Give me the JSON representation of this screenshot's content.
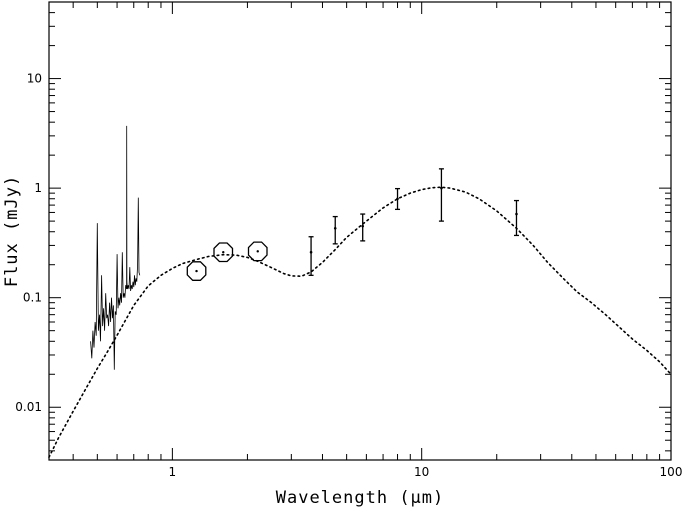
{
  "chart_data": {
    "type": "scatter",
    "title": "",
    "xlabel": "Wavelength (μm)",
    "ylabel": "Flux (mJy)",
    "xscale": "log",
    "yscale": "log",
    "xlim": [
      0.32,
      100
    ],
    "ylim": [
      0.0033,
      50
    ],
    "grid": false,
    "x_ticks": [
      {
        "value": 1,
        "label": "1"
      },
      {
        "value": 10,
        "label": "10"
      },
      {
        "value": 100,
        "label": "100"
      }
    ],
    "y_ticks": [
      {
        "value": 0.01,
        "label": "0.01"
      },
      {
        "value": 0.1,
        "label": "0.1"
      },
      {
        "value": 1,
        "label": "1"
      },
      {
        "value": 10,
        "label": "10"
      }
    ],
    "series": [
      {
        "style": "dotted-line",
        "x": [
          0.32,
          0.35,
          0.4,
          0.45,
          0.5,
          0.55,
          0.6,
          0.7,
          0.8,
          0.9,
          1.0,
          1.1,
          1.25,
          1.4,
          1.6,
          1.8,
          2.0,
          2.2,
          2.5,
          2.8,
          3.0,
          3.3,
          3.6,
          4.0,
          4.5,
          5.0,
          5.8,
          7.0,
          8.0,
          9.0,
          10,
          11,
          12,
          13,
          15,
          17,
          20,
          24,
          28,
          32,
          37,
          42,
          48,
          55,
          62,
          70,
          80,
          90,
          100
        ],
        "y": [
          0.0035,
          0.0053,
          0.0092,
          0.0148,
          0.0226,
          0.0323,
          0.0455,
          0.085,
          0.128,
          0.16,
          0.185,
          0.205,
          0.223,
          0.238,
          0.247,
          0.245,
          0.233,
          0.215,
          0.188,
          0.166,
          0.158,
          0.157,
          0.172,
          0.21,
          0.275,
          0.355,
          0.47,
          0.66,
          0.8,
          0.9,
          0.97,
          1.01,
          1.02,
          1.0,
          0.92,
          0.8,
          0.62,
          0.43,
          0.3,
          0.21,
          0.15,
          0.113,
          0.09,
          0.069,
          0.054,
          0.042,
          0.033,
          0.026,
          0.02
        ]
      },
      {
        "style": "spectrum",
        "x": [
          0.47,
          0.475,
          0.48,
          0.485,
          0.49,
          0.495,
          0.5,
          0.505,
          0.51,
          0.515,
          0.52,
          0.525,
          0.53,
          0.535,
          0.54,
          0.545,
          0.55,
          0.555,
          0.56,
          0.565,
          0.57,
          0.575,
          0.58,
          0.585,
          0.59,
          0.595,
          0.6,
          0.605,
          0.61,
          0.615,
          0.62,
          0.625,
          0.63,
          0.635,
          0.64,
          0.645,
          0.65,
          0.655,
          0.656,
          0.657,
          0.66,
          0.665,
          0.67,
          0.675,
          0.68,
          0.685,
          0.69,
          0.695,
          0.7,
          0.705,
          0.71,
          0.715,
          0.72,
          0.725,
          0.73,
          0.735,
          0.74
        ],
        "y": [
          0.04,
          0.028,
          0.05,
          0.035,
          0.06,
          0.045,
          0.48,
          0.05,
          0.07,
          0.04,
          0.16,
          0.055,
          0.08,
          0.05,
          0.11,
          0.065,
          0.07,
          0.055,
          0.09,
          0.06,
          0.1,
          0.065,
          0.085,
          0.022,
          0.075,
          0.07,
          0.25,
          0.08,
          0.1,
          0.085,
          0.11,
          0.09,
          0.26,
          0.1,
          0.11,
          0.1,
          0.13,
          0.12,
          3.7,
          0.14,
          0.12,
          0.13,
          0.12,
          0.19,
          0.115,
          0.13,
          0.12,
          0.14,
          0.125,
          0.16,
          0.13,
          0.15,
          0.14,
          0.2,
          0.82,
          0.17,
          0.16
        ]
      },
      {
        "style": "open-octagon",
        "x": [
          1.25,
          1.6,
          2.2
        ],
        "y": [
          0.175,
          0.26,
          0.265
        ]
      },
      {
        "style": "errorbar",
        "x": [
          3.6,
          4.5,
          5.8,
          8.0,
          12.0,
          24.0
        ],
        "y": [
          0.26,
          0.43,
          0.45,
          0.8,
          1.0,
          0.58
        ],
        "y_low": [
          0.16,
          0.31,
          0.33,
          0.64,
          0.5,
          0.37
        ],
        "y_high": [
          0.36,
          0.55,
          0.58,
          0.99,
          1.5,
          0.77
        ]
      }
    ]
  }
}
